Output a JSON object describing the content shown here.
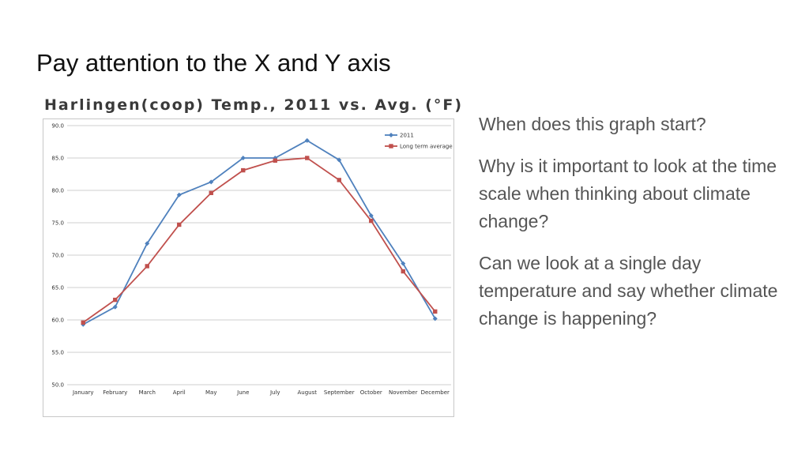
{
  "slide": {
    "title": "Pay attention to the X and Y axis"
  },
  "questions": [
    "When does this graph start?",
    "Why is it important to look at the time scale when thinking about climate change?",
    "Can we look at a single day temperature and say whether climate change is happening?"
  ],
  "colors": {
    "series_2011": "#4f81bd",
    "series_avg": "#c0504d",
    "grid": "#bfbfbf"
  },
  "chart_data": {
    "type": "line",
    "title": "Harlingen(coop) Temp., 2011 vs. Avg. (°F)",
    "xlabel": "",
    "ylabel": "",
    "ylim": [
      50,
      90
    ],
    "yticks": [
      "50.0",
      "55.0",
      "60.0",
      "65.0",
      "70.0",
      "75.0",
      "80.0",
      "85.0",
      "90.0"
    ],
    "grid": true,
    "legend_position": "top-right",
    "categories": [
      "January",
      "February",
      "March",
      "April",
      "May",
      "June",
      "July",
      "August",
      "September",
      "October",
      "November",
      "December"
    ],
    "series": [
      {
        "name": "2011",
        "marker": "diamond",
        "values": [
          59.3,
          62.0,
          71.8,
          79.3,
          81.3,
          85.0,
          85.0,
          87.7,
          84.7,
          76.1,
          68.7,
          60.2
        ]
      },
      {
        "name": "Long term average",
        "marker": "square",
        "values": [
          59.6,
          63.1,
          68.3,
          74.7,
          79.6,
          83.1,
          84.6,
          85.0,
          81.6,
          75.3,
          67.5,
          61.3
        ]
      }
    ]
  }
}
